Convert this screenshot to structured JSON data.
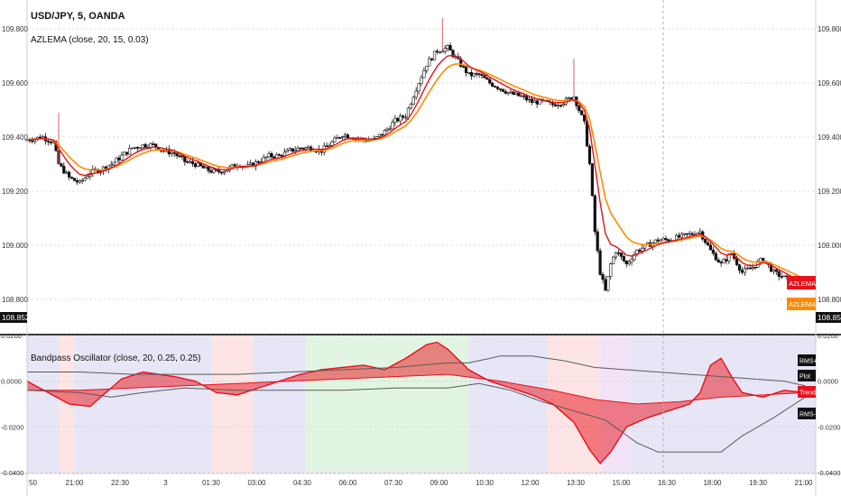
{
  "chart_data": [
    {
      "type": "candlestick",
      "title": "USD/JPY, 5, OANDA",
      "subtitle": "AZLEMA (close, 20, 15, 0.03)",
      "ylim": [
        108.7,
        109.88
      ],
      "y_ticks": [
        "109.800",
        "109.600",
        "109.400",
        "109.200",
        "109.000",
        "108.800"
      ],
      "last_price_label": "108.852",
      "y_axis_left_label": "108.852",
      "series_tags": [
        {
          "name": "AZLEMA",
          "color": "#e8101a"
        },
        {
          "name": "AZLEMA-EC",
          "color": "#ff8a00"
        }
      ],
      "close_path": [
        [
          0,
          109.39
        ],
        [
          3,
          109.4
        ],
        [
          5,
          109.38
        ],
        [
          6,
          109.3
        ],
        [
          8,
          109.25
        ],
        [
          10,
          109.23
        ],
        [
          12,
          109.27
        ],
        [
          14,
          109.28
        ],
        [
          16,
          109.3
        ],
        [
          18,
          109.33
        ],
        [
          20,
          109.36
        ],
        [
          22,
          109.37
        ],
        [
          24,
          109.37
        ],
        [
          26,
          109.35
        ],
        [
          28,
          109.34
        ],
        [
          30,
          109.31
        ],
        [
          32,
          109.3
        ],
        [
          34,
          109.28
        ],
        [
          36,
          109.27
        ],
        [
          38,
          109.28
        ],
        [
          40,
          109.3
        ],
        [
          42,
          109.29
        ],
        [
          44,
          109.31
        ],
        [
          46,
          109.33
        ],
        [
          48,
          109.33
        ],
        [
          50,
          109.35
        ],
        [
          52,
          109.36
        ],
        [
          54,
          109.36
        ],
        [
          56,
          109.35
        ],
        [
          58,
          109.38
        ],
        [
          60,
          109.41
        ],
        [
          62,
          109.4
        ],
        [
          64,
          109.39
        ],
        [
          66,
          109.39
        ],
        [
          68,
          109.42
        ],
        [
          70,
          109.46
        ],
        [
          72,
          109.48
        ],
        [
          74,
          109.58
        ],
        [
          76,
          109.67
        ],
        [
          78,
          109.72
        ],
        [
          80,
          109.73
        ],
        [
          82,
          109.68
        ],
        [
          84,
          109.63
        ],
        [
          86,
          109.63
        ],
        [
          88,
          109.6
        ],
        [
          90,
          109.58
        ],
        [
          92,
          109.56
        ],
        [
          94,
          109.55
        ],
        [
          96,
          109.53
        ],
        [
          98,
          109.53
        ],
        [
          100,
          109.52
        ],
        [
          102,
          109.53
        ],
        [
          104,
          109.55
        ],
        [
          106,
          109.45
        ],
        [
          107,
          109.3
        ],
        [
          108,
          109.05
        ],
        [
          109,
          108.9
        ],
        [
          110,
          108.83
        ],
        [
          111,
          108.93
        ],
        [
          112,
          108.98
        ],
        [
          114,
          108.93
        ],
        [
          116,
          108.98
        ],
        [
          118,
          109.0
        ],
        [
          120,
          109.02
        ],
        [
          122,
          109.02
        ],
        [
          124,
          109.03
        ],
        [
          126,
          109.04
        ],
        [
          128,
          109.05
        ],
        [
          130,
          108.98
        ],
        [
          132,
          108.93
        ],
        [
          134,
          108.97
        ],
        [
          136,
          108.9
        ],
        [
          138,
          108.92
        ],
        [
          140,
          108.95
        ],
        [
          142,
          108.9
        ],
        [
          144,
          108.88
        ],
        [
          146,
          108.86
        ],
        [
          148,
          108.85
        ]
      ]
    },
    {
      "type": "line",
      "title": "Bandpass Oscillator (close, 20, 0.25, 0.25)",
      "ylim": [
        -0.04,
        0.02
      ],
      "y_ticks": [
        "0.0200",
        "0.0000",
        "-0.0200",
        "-0.0400"
      ],
      "x_tick_labels": [
        "50",
        "21:00",
        "22:30",
        "3",
        "01:30",
        "03:00",
        "04:30",
        "06:00",
        "07:30",
        "09:00",
        "10:30",
        "12:00",
        "13:30",
        "15:00",
        "16:30",
        "18:00",
        "19:30",
        "21:00"
      ],
      "legend_tags": [
        "RMS+",
        "Plot",
        "Trend",
        "RMS-"
      ],
      "series": [
        {
          "name": "Plot",
          "color": "#e8101a",
          "points": [
            [
              0,
              0.0
            ],
            [
              4,
              -0.005
            ],
            [
              8,
              -0.01
            ],
            [
              12,
              -0.011
            ],
            [
              16,
              -0.003
            ],
            [
              18,
              0.001
            ],
            [
              22,
              0.004
            ],
            [
              28,
              0.002
            ],
            [
              32,
              0.0
            ],
            [
              36,
              -0.005
            ],
            [
              40,
              -0.006
            ],
            [
              44,
              -0.003
            ],
            [
              48,
              0.0
            ],
            [
              52,
              0.003
            ],
            [
              56,
              0.005
            ],
            [
              60,
              0.006
            ],
            [
              64,
              0.007
            ],
            [
              68,
              0.005
            ],
            [
              72,
              0.01
            ],
            [
              76,
              0.016
            ],
            [
              78,
              0.017
            ],
            [
              80,
              0.014
            ],
            [
              84,
              0.005
            ],
            [
              88,
              0.0
            ],
            [
              92,
              -0.003
            ],
            [
              96,
              -0.006
            ],
            [
              100,
              -0.01
            ],
            [
              104,
              -0.018
            ],
            [
              107,
              -0.03
            ],
            [
              109,
              -0.036
            ],
            [
              111,
              -0.031
            ],
            [
              114,
              -0.02
            ],
            [
              118,
              -0.016
            ],
            [
              122,
              -0.013
            ],
            [
              126,
              -0.01
            ],
            [
              128,
              -0.005
            ],
            [
              130,
              0.007
            ],
            [
              132,
              0.01
            ],
            [
              134,
              0.002
            ],
            [
              136,
              -0.005
            ],
            [
              140,
              -0.007
            ],
            [
              144,
              -0.004
            ],
            [
              148,
              -0.005
            ]
          ]
        },
        {
          "name": "Trend",
          "color": "#e8101a",
          "points": [
            [
              0,
              -0.004
            ],
            [
              10,
              -0.004
            ],
            [
              20,
              -0.003
            ],
            [
              30,
              -0.002
            ],
            [
              40,
              -0.001
            ],
            [
              50,
              0.0
            ],
            [
              60,
              0.001
            ],
            [
              70,
              0.002
            ],
            [
              80,
              0.003
            ],
            [
              90,
              0.0
            ],
            [
              100,
              -0.004
            ],
            [
              108,
              -0.008
            ],
            [
              116,
              -0.01
            ],
            [
              124,
              -0.009
            ],
            [
              132,
              -0.007
            ],
            [
              140,
              -0.006
            ],
            [
              148,
              -0.005
            ]
          ]
        },
        {
          "name": "RMS+",
          "color": "#5a5a5a",
          "points": [
            [
              0,
              0.004
            ],
            [
              10,
              0.004
            ],
            [
              20,
              0.003
            ],
            [
              30,
              0.003
            ],
            [
              40,
              0.003
            ],
            [
              50,
              0.004
            ],
            [
              60,
              0.005
            ],
            [
              70,
              0.006
            ],
            [
              80,
              0.008
            ],
            [
              84,
              0.008
            ],
            [
              90,
              0.011
            ],
            [
              96,
              0.011
            ],
            [
              102,
              0.009
            ],
            [
              108,
              0.006
            ],
            [
              114,
              0.005
            ],
            [
              120,
              0.004
            ],
            [
              126,
              0.003
            ],
            [
              132,
              0.002
            ],
            [
              138,
              0.001
            ],
            [
              144,
              0.0
            ],
            [
              148,
              -0.002
            ]
          ]
        },
        {
          "name": "RMS-",
          "color": "#5a5a5a",
          "points": [
            [
              0,
              -0.004
            ],
            [
              10,
              -0.005
            ],
            [
              16,
              -0.007
            ],
            [
              22,
              -0.005
            ],
            [
              30,
              -0.003
            ],
            [
              40,
              -0.004
            ],
            [
              50,
              -0.004
            ],
            [
              60,
              -0.004
            ],
            [
              70,
              -0.003
            ],
            [
              80,
              -0.003
            ],
            [
              86,
              -0.001
            ],
            [
              92,
              -0.004
            ],
            [
              98,
              -0.009
            ],
            [
              104,
              -0.013
            ],
            [
              110,
              -0.017
            ],
            [
              116,
              -0.027
            ],
            [
              120,
              -0.031
            ],
            [
              126,
              -0.031
            ],
            [
              132,
              -0.031
            ],
            [
              136,
              -0.024
            ],
            [
              142,
              -0.016
            ],
            [
              148,
              -0.007
            ]
          ]
        }
      ]
    }
  ]
}
